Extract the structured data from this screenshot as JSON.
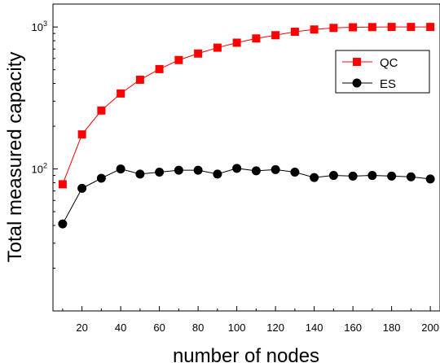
{
  "chart_data": {
    "type": "line",
    "xlabel": "number of nodes",
    "ylabel": "Total measured capacity",
    "yscale": "log",
    "xlim": [
      5,
      205
    ],
    "ylim": [
      10,
      1450
    ],
    "x": [
      10,
      20,
      30,
      40,
      50,
      60,
      70,
      80,
      90,
      100,
      110,
      120,
      130,
      140,
      150,
      160,
      170,
      180,
      190,
      200
    ],
    "x_ticks": [
      20,
      40,
      60,
      80,
      100,
      120,
      140,
      160,
      180,
      200
    ],
    "x_tick_labels": [
      "20",
      "40",
      "60",
      "80",
      "100",
      "120",
      "140",
      "160",
      "180",
      "200"
    ],
    "y_major_ticks": [
      100,
      1000
    ],
    "y_tick_labels": [
      {
        "base": "10",
        "exp": "2",
        "value": 100
      },
      {
        "base": "10",
        "exp": "3",
        "value": 1000
      }
    ],
    "legend_position": "top-right",
    "grid": false,
    "series": [
      {
        "name": "QC",
        "color": "#ff0000",
        "marker": "square",
        "values": [
          78,
          175,
          258,
          340,
          425,
          505,
          585,
          650,
          715,
          775,
          830,
          875,
          925,
          960,
          985,
          995,
          998,
          1000,
          1000,
          1000
        ]
      },
      {
        "name": "ES",
        "color": "#000000",
        "marker": "circle",
        "values": [
          41,
          73,
          86,
          100,
          92,
          95,
          98,
          98,
          92,
          101,
          97,
          99,
          95,
          87,
          90,
          89,
          90,
          89,
          88,
          85
        ]
      }
    ]
  }
}
